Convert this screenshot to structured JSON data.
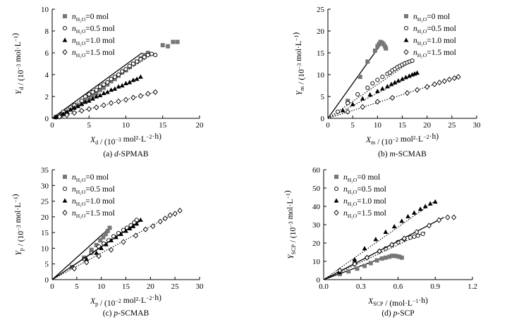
{
  "chart_data": [
    {
      "type": "scatter",
      "caption": "(a) d-SPMAB",
      "title": "",
      "xlabel": "Xd / (10^-3 mol²·L^-2·h)",
      "ylabel": "Yd / (10^-3 mol·L^-1)",
      "xlim": [
        0,
        20
      ],
      "ylim": [
        0,
        10
      ],
      "xticks": [
        0,
        5,
        10,
        15,
        20
      ],
      "yticks": [
        0,
        2,
        4,
        6,
        8,
        10
      ],
      "legend": "top-left",
      "grid": false,
      "series": [
        {
          "name": "nH2O=0 mol",
          "marker": "square",
          "x": [
            0.5,
            0.8,
            1.2,
            1.6,
            2.0,
            2.5,
            3.0,
            3.5,
            4.0,
            4.5,
            5.0,
            5.5,
            6.0,
            6.5,
            7.0,
            7.5,
            8.0,
            8.5,
            9.0,
            9.5,
            10.0,
            10.5,
            11.0,
            11.5,
            12.0,
            12.5,
            13.0,
            15.0,
            15.7,
            16.4,
            17.0
          ],
          "y": [
            0.12,
            0.2,
            0.25,
            0.38,
            0.5,
            0.8,
            1.0,
            1.2,
            1.4,
            1.6,
            1.9,
            2.1,
            2.3,
            2.6,
            2.8,
            3.1,
            3.4,
            3.6,
            3.9,
            4.2,
            4.4,
            4.7,
            5.0,
            5.2,
            5.5,
            5.8,
            6.0,
            6.7,
            6.6,
            7.0,
            7.0
          ],
          "fit": [
            [
              0,
              0
            ],
            [
              12.2,
              6.0
            ]
          ],
          "fit_style": "solid"
        },
        {
          "name": "nH2O=0.5 mol",
          "marker": "circle",
          "x": [
            0.5,
            1.0,
            1.5,
            2.5,
            3.0,
            4.0,
            4.5,
            5.0,
            5.5,
            6.0,
            6.5,
            7.0,
            7.5,
            8.0,
            8.5,
            9.0,
            9.5,
            10.0,
            10.5,
            11.0,
            11.5,
            12.0,
            12.5,
            13.0,
            13.5,
            14.0
          ],
          "y": [
            0.1,
            0.3,
            0.6,
            1.0,
            1.2,
            1.6,
            2.0,
            2.2,
            2.4,
            2.6,
            2.9,
            3.1,
            3.3,
            3.6,
            3.8,
            4.0,
            4.3,
            4.5,
            4.8,
            5.0,
            5.2,
            5.4,
            5.6,
            5.8,
            5.9,
            5.8
          ],
          "fit": [
            [
              0,
              0
            ],
            [
              13.8,
              5.95
            ]
          ],
          "fit_style": "dotted"
        },
        {
          "name": "nH2O=1.0 mol",
          "marker": "triangle",
          "x": [
            0.5,
            1.0,
            1.5,
            2.0,
            2.5,
            3.0,
            3.5,
            4.0,
            4.5,
            5.0,
            5.5,
            6.0,
            6.5,
            7.0,
            7.5,
            8.0,
            8.5,
            9.0,
            9.5,
            10.0,
            10.5,
            11.0,
            11.5,
            12.0
          ],
          "y": [
            0.1,
            0.25,
            0.4,
            0.6,
            0.8,
            0.95,
            1.1,
            1.3,
            1.5,
            1.6,
            1.8,
            2.0,
            2.1,
            2.3,
            2.4,
            2.6,
            2.7,
            2.9,
            3.0,
            3.2,
            3.3,
            3.5,
            3.6,
            3.8
          ],
          "fit": [
            [
              0,
              0
            ],
            [
              12.0,
              3.8
            ]
          ],
          "fit_style": "dotted"
        },
        {
          "name": "nH2O=1.5 mol",
          "marker": "diamond",
          "x": [
            1.0,
            2.0,
            3.0,
            4.0,
            5.0,
            6.0,
            7.0,
            8.0,
            9.0,
            10.0,
            11.0,
            12.0,
            13.0,
            14.0
          ],
          "y": [
            0.15,
            0.3,
            0.5,
            0.7,
            0.85,
            1.0,
            1.2,
            1.4,
            1.55,
            1.7,
            1.9,
            2.05,
            2.25,
            2.4
          ],
          "fit": [
            [
              0,
              0
            ],
            [
              14.0,
              2.4
            ]
          ],
          "fit_style": "dotted"
        }
      ]
    },
    {
      "type": "scatter",
      "caption": "(b) m-SCMAB",
      "title": "",
      "xlabel": "Xm / (10^-2 mol²·L^-2·h)",
      "ylabel": "Ym / (10^-3 mol·L^-1)",
      "xlim": [
        0,
        30
      ],
      "ylim": [
        0,
        25
      ],
      "xticks": [
        0,
        5,
        10,
        15,
        20,
        25,
        30
      ],
      "yticks": [
        0,
        5,
        10,
        15,
        20,
        25
      ],
      "legend": "top-right",
      "grid": false,
      "series": [
        {
          "name": "nH2O=0 mol",
          "marker": "square",
          "x": [
            4.0,
            6.5,
            8.0,
            9.5,
            10.0,
            10.3,
            10.6,
            10.9,
            11.2,
            11.5,
            11.7
          ],
          "y": [
            4.0,
            9.5,
            13.0,
            15.5,
            16.5,
            17.0,
            17.5,
            17.3,
            17.0,
            16.5,
            16.0
          ],
          "fit": [
            [
              0,
              0
            ],
            [
              11.0,
              17.5
            ]
          ],
          "fit_style": "solid"
        },
        {
          "name": "nH2O=0.5 mol",
          "marker": "circle",
          "x": [
            2.0,
            4.0,
            6.0,
            8.0,
            9.0,
            10.0,
            11.0,
            12.0,
            12.5,
            13.0,
            13.5,
            14.0,
            14.5,
            15.0,
            15.5,
            16.0,
            16.5,
            17.0
          ],
          "y": [
            1.5,
            3.5,
            5.5,
            7.0,
            8.0,
            8.8,
            9.5,
            10.2,
            10.5,
            11.0,
            11.3,
            11.7,
            12.0,
            12.3,
            12.6,
            12.8,
            13.0,
            13.2
          ],
          "fit": [
            [
              0,
              0
            ],
            [
              17.0,
              13.2
            ]
          ],
          "fit_style": "dotted"
        },
        {
          "name": "nH2O=1.0 mol",
          "marker": "triangle",
          "x": [
            3.0,
            5.0,
            7.0,
            8.5,
            10.0,
            11.0,
            12.0,
            12.8,
            13.5,
            14.2,
            15.0,
            15.7,
            16.4,
            17.0,
            17.5,
            18.0
          ],
          "y": [
            1.8,
            3.2,
            4.5,
            5.4,
            6.2,
            6.8,
            7.3,
            7.8,
            8.2,
            8.6,
            9.0,
            9.4,
            9.7,
            10.0,
            10.2,
            10.4
          ],
          "fit": [
            [
              0,
              0
            ],
            [
              18.0,
              10.4
            ]
          ],
          "fit_style": "dotted"
        },
        {
          "name": "nH2O=1.5 mol",
          "marker": "diamond",
          "x": [
            4.0,
            7.0,
            10.0,
            13.0,
            16.0,
            18.0,
            20.0,
            21.5,
            22.5,
            23.5,
            24.5,
            25.5,
            26.3
          ],
          "y": [
            1.5,
            2.6,
            3.8,
            4.7,
            5.8,
            6.5,
            7.2,
            7.8,
            8.2,
            8.5,
            8.9,
            9.2,
            9.5
          ],
          "fit": [
            [
              0,
              0
            ],
            [
              26.3,
              9.5
            ]
          ],
          "fit_style": "dotted"
        }
      ]
    },
    {
      "type": "scatter",
      "caption": "(c) p-SCMAB",
      "title": "",
      "xlabel": "Xp / (10^-2 mol²·L^-2·h)",
      "ylabel": "Yp / (10^-3 mol·L^-1)",
      "xlim": [
        0,
        30
      ],
      "ylim": [
        0,
        35
      ],
      "xticks": [
        0,
        5,
        10,
        15,
        20,
        25,
        30
      ],
      "yticks": [
        0,
        5,
        10,
        15,
        20,
        25,
        30,
        35
      ],
      "legend": "top-left",
      "grid": false,
      "series": [
        {
          "name": "nH2O=0 mol",
          "marker": "square",
          "x": [
            4.0,
            6.5,
            8.0,
            9.0,
            9.8,
            10.4,
            10.9,
            11.3,
            11.7
          ],
          "y": [
            4.0,
            7.0,
            9.5,
            11.0,
            12.5,
            13.5,
            14.5,
            15.5,
            16.5
          ],
          "fit": [
            [
              0,
              0
            ],
            [
              11.0,
              15.5
            ]
          ],
          "fit_style": "solid"
        },
        {
          "name": "nH2O=0.5 mol",
          "marker": "circle",
          "x": [
            6.5,
            8.0,
            9.5,
            10.5,
            11.5,
            12.5,
            13.5,
            14.5,
            15.2,
            16.0,
            16.7,
            17.2
          ],
          "y": [
            6.5,
            8.5,
            10.5,
            11.5,
            12.5,
            13.8,
            14.8,
            15.8,
            16.5,
            17.3,
            18.2,
            19.0
          ],
          "fit": [
            [
              0,
              0
            ],
            [
              17.5,
              18.5
            ]
          ],
          "fit_style": "dotted"
        },
        {
          "name": "nH2O=1.0 mol",
          "marker": "triangle",
          "x": [
            7.0,
            9.0,
            10.0,
            11.0,
            12.0,
            13.0,
            14.0,
            15.0,
            15.8,
            16.5,
            17.2,
            18.0
          ],
          "y": [
            6.5,
            8.5,
            10.0,
            11.2,
            12.5,
            13.5,
            14.5,
            15.5,
            16.3,
            17.0,
            17.8,
            19.0
          ],
          "fit": [
            [
              0,
              0
            ],
            [
              18.0,
              18.8
            ]
          ],
          "fit_style": "solid"
        },
        {
          "name": "nH2O=1.5 mol",
          "marker": "diamond",
          "x": [
            4.5,
            7.0,
            9.5,
            12.0,
            14.5,
            17.0,
            19.0,
            20.5,
            22.0,
            23.0,
            24.0,
            25.0,
            26.0
          ],
          "y": [
            3.5,
            5.5,
            7.5,
            9.5,
            12.0,
            14.0,
            16.0,
            17.0,
            18.5,
            19.5,
            20.5,
            21.0,
            22.0
          ],
          "fit": [
            [
              0,
              0
            ],
            [
              26.0,
              22.0
            ]
          ],
          "fit_style": "dotted"
        }
      ]
    },
    {
      "type": "scatter",
      "caption": "(d) p-SCP",
      "title": "",
      "xlabel": "XSCP / (mol·L^-1·h)",
      "ylabel": "YSCP / (10^-3 mol·L^-1)",
      "xlim": [
        0,
        1.2
      ],
      "ylim": [
        0,
        60
      ],
      "xticks": [
        0,
        0.3,
        0.6,
        0.9,
        1.2
      ],
      "xticklabels": [
        "0.0",
        "0.3",
        "0.6",
        "0.9",
        "1.2"
      ],
      "yticks": [
        0,
        10,
        20,
        30,
        40,
        50,
        60
      ],
      "legend": "top-left",
      "grid": false,
      "series": [
        {
          "name": "nH2O=0 mol",
          "marker": "square",
          "x": [
            0.13,
            0.2,
            0.27,
            0.33,
            0.38,
            0.43,
            0.47,
            0.5,
            0.53,
            0.55,
            0.57,
            0.59,
            0.61,
            0.63
          ],
          "y": [
            3.0,
            4.5,
            6.0,
            7.5,
            9.0,
            10.5,
            11.5,
            12.0,
            12.5,
            13.0,
            13.0,
            12.8,
            12.5,
            12.0
          ],
          "fit": [
            [
              0,
              0
            ],
            [
              0.5,
              12.5
            ]
          ],
          "fit_style": "solid"
        },
        {
          "name": "nH2O=0.5 mol",
          "marker": "circle",
          "x": [
            0.13,
            0.25,
            0.35,
            0.45,
            0.5,
            0.55,
            0.6,
            0.65,
            0.7,
            0.73,
            0.76,
            0.8
          ],
          "y": [
            5.0,
            9.0,
            12.0,
            15.5,
            17.0,
            19.0,
            20.5,
            22.0,
            23.0,
            23.5,
            24.0,
            25.0
          ],
          "fit": [
            [
              0,
              0
            ],
            [
              0.82,
              26.0
            ]
          ],
          "fit_style": "dotted"
        },
        {
          "name": "nH2O=1.0 mol",
          "marker": "triangle",
          "x": [
            0.13,
            0.25,
            0.33,
            0.42,
            0.5,
            0.57,
            0.63,
            0.68,
            0.73,
            0.78,
            0.82,
            0.86,
            0.9
          ],
          "y": [
            4.0,
            11.0,
            17.0,
            22.0,
            26.0,
            29.0,
            32.0,
            34.5,
            36.5,
            38.5,
            40.0,
            41.5,
            42.5
          ],
          "fit": [
            [
              0,
              0
            ],
            [
              0.9,
              43.0
            ]
          ],
          "fit_style": "dotted"
        },
        {
          "name": "nH2O=1.5 mol",
          "marker": "diamond",
          "x": [
            0.13,
            0.25,
            0.35,
            0.45,
            0.55,
            0.65,
            0.75,
            0.85,
            0.93,
            1.0,
            1.05
          ],
          "y": [
            5.0,
            8.5,
            12.0,
            15.5,
            19.0,
            22.5,
            26.0,
            29.5,
            32.5,
            34.0,
            34.0
          ],
          "fit": [
            [
              0,
              0
            ],
            [
              0.97,
              34.0
            ]
          ],
          "fit_style": "solid"
        }
      ]
    }
  ]
}
